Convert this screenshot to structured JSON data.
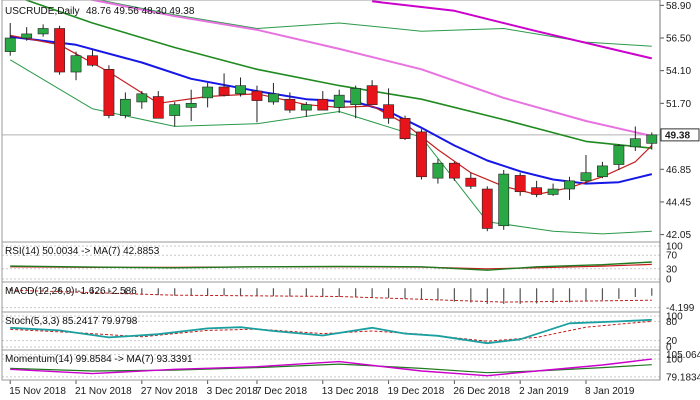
{
  "header": {
    "symbol": "USCRUDE,Daily",
    "ohlc": "48.76 49.56 48.30 49.38"
  },
  "colors": {
    "bull": "#2aa845",
    "bear": "#e8141c",
    "ma_blue": "#1616e6",
    "ma_green": "#1f8a1f",
    "ma_pink": "#e872e0",
    "ma_magenta": "#cc00cc",
    "ma_red": "#c41f1f",
    "bollinger": "#2a9a4a",
    "current_price_bg": "#ffffff"
  },
  "chart_data": {
    "type": "candlestick",
    "price_axis": {
      "range": [
        41.8,
        59.0
      ],
      "ticks": [
        "58.90",
        "56.50",
        "54.10",
        "51.70",
        "49.30",
        "46.85",
        "44.45",
        "42.05"
      ],
      "current": "49.38"
    },
    "dates": [
      "15 Nov 2018",
      "21 Nov 2018",
      "27 Nov 2018",
      "3 Dec 2018",
      "7 Dec 2018",
      "13 Dec 2018",
      "19 Dec 2018",
      "26 Dec 2018",
      "2 Jan 2019",
      "8 Jan 2019"
    ],
    "candles": [
      {
        "o": 55.5,
        "h": 57.6,
        "l": 55.2,
        "c": 56.5
      },
      {
        "o": 56.5,
        "h": 57.3,
        "l": 56.3,
        "c": 56.8
      },
      {
        "o": 56.8,
        "h": 57.5,
        "l": 56.6,
        "c": 57.2
      },
      {
        "o": 57.2,
        "h": 57.4,
        "l": 53.8,
        "c": 54.0
      },
      {
        "o": 54.0,
        "h": 55.5,
        "l": 53.4,
        "c": 55.2
      },
      {
        "o": 55.2,
        "h": 55.6,
        "l": 54.4,
        "c": 54.5
      },
      {
        "o": 54.2,
        "h": 54.5,
        "l": 50.6,
        "c": 50.8
      },
      {
        "o": 50.8,
        "h": 52.5,
        "l": 50.6,
        "c": 52.0
      },
      {
        "o": 51.8,
        "h": 52.6,
        "l": 51.3,
        "c": 52.4
      },
      {
        "o": 52.2,
        "h": 52.6,
        "l": 50.6,
        "c": 50.6
      },
      {
        "o": 50.8,
        "h": 51.8,
        "l": 50.0,
        "c": 51.6
      },
      {
        "o": 51.4,
        "h": 52.7,
        "l": 50.4,
        "c": 51.7
      },
      {
        "o": 52.1,
        "h": 53.2,
        "l": 51.4,
        "c": 52.9
      },
      {
        "o": 52.9,
        "h": 53.9,
        "l": 52.2,
        "c": 52.3
      },
      {
        "o": 52.4,
        "h": 53.6,
        "l": 52.2,
        "c": 53.0
      },
      {
        "o": 52.6,
        "h": 53.0,
        "l": 50.3,
        "c": 51.9
      },
      {
        "o": 51.8,
        "h": 53.2,
        "l": 51.6,
        "c": 52.4
      },
      {
        "o": 52.0,
        "h": 52.5,
        "l": 51.0,
        "c": 51.2
      },
      {
        "o": 51.2,
        "h": 51.8,
        "l": 50.7,
        "c": 51.6
      },
      {
        "o": 52.0,
        "h": 52.6,
        "l": 51.2,
        "c": 51.2
      },
      {
        "o": 51.4,
        "h": 52.7,
        "l": 51.0,
        "c": 52.3
      },
      {
        "o": 51.6,
        "h": 53.0,
        "l": 50.6,
        "c": 52.8
      },
      {
        "o": 53.0,
        "h": 53.4,
        "l": 51.6,
        "c": 51.6
      },
      {
        "o": 51.6,
        "h": 52.8,
        "l": 50.2,
        "c": 50.6
      },
      {
        "o": 50.6,
        "h": 50.8,
        "l": 49.0,
        "c": 49.1
      },
      {
        "o": 49.6,
        "h": 49.8,
        "l": 46.1,
        "c": 46.3
      },
      {
        "o": 46.2,
        "h": 47.6,
        "l": 45.8,
        "c": 47.3
      },
      {
        "o": 47.3,
        "h": 47.4,
        "l": 46.0,
        "c": 46.2
      },
      {
        "o": 46.2,
        "h": 46.6,
        "l": 45.4,
        "c": 45.6
      },
      {
        "o": 45.4,
        "h": 45.6,
        "l": 42.3,
        "c": 42.5
      },
      {
        "o": 42.7,
        "h": 46.8,
        "l": 42.4,
        "c": 46.5
      },
      {
        "o": 46.4,
        "h": 46.6,
        "l": 44.9,
        "c": 45.2
      },
      {
        "o": 45.5,
        "h": 46.0,
        "l": 44.8,
        "c": 45.0
      },
      {
        "o": 45.0,
        "h": 45.8,
        "l": 44.9,
        "c": 45.4
      },
      {
        "o": 45.4,
        "h": 46.3,
        "l": 44.6,
        "c": 46.0
      },
      {
        "o": 46.0,
        "h": 47.9,
        "l": 45.8,
        "c": 46.6
      },
      {
        "o": 46.3,
        "h": 47.4,
        "l": 46.2,
        "c": 47.1
      },
      {
        "o": 47.2,
        "h": 48.7,
        "l": 46.8,
        "c": 48.6
      },
      {
        "o": 48.5,
        "h": 50.0,
        "l": 48.2,
        "c": 49.1
      },
      {
        "o": 48.76,
        "h": 49.56,
        "l": 48.3,
        "c": 49.38
      }
    ],
    "overlays": {
      "bb_upper": [
        [
          0,
          60.2
        ],
        [
          5,
          59.4
        ],
        [
          10,
          58.2
        ],
        [
          15,
          57.2
        ],
        [
          20,
          57.6
        ],
        [
          25,
          57.0
        ],
        [
          30,
          57.2
        ],
        [
          35,
          56.2
        ],
        [
          39,
          55.9
        ]
      ],
      "bb_lower": [
        [
          0,
          54.9
        ],
        [
          5,
          51.3
        ],
        [
          10,
          50.0
        ],
        [
          15,
          50.2
        ],
        [
          20,
          51.1
        ],
        [
          25,
          49.2
        ],
        [
          29,
          43.0
        ],
        [
          33,
          42.3
        ],
        [
          36,
          42.1
        ],
        [
          39,
          42.3
        ]
      ],
      "ma_blue": [
        [
          0,
          56.6
        ],
        [
          4,
          56.0
        ],
        [
          8,
          54.7
        ],
        [
          11,
          53.5
        ],
        [
          15,
          52.6
        ],
        [
          18,
          52.0
        ],
        [
          21,
          51.8
        ],
        [
          23,
          51.1
        ],
        [
          25,
          49.9
        ],
        [
          27,
          48.6
        ],
        [
          29,
          47.5
        ],
        [
          31,
          46.7
        ],
        [
          33,
          46.1
        ],
        [
          35,
          45.8
        ],
        [
          37,
          45.9
        ],
        [
          39,
          46.5
        ]
      ],
      "ma_green": [
        [
          0,
          59.7
        ],
        [
          5,
          57.6
        ],
        [
          10,
          55.8
        ],
        [
          15,
          54.2
        ],
        [
          20,
          53.0
        ],
        [
          25,
          52.0
        ],
        [
          30,
          50.5
        ],
        [
          35,
          48.9
        ],
        [
          39,
          48.4
        ]
      ],
      "ma_pink": [
        [
          0,
          60.5
        ],
        [
          5,
          59.3
        ],
        [
          10,
          58.1
        ],
        [
          15,
          57.1
        ],
        [
          20,
          55.7
        ],
        [
          25,
          54.2
        ],
        [
          30,
          52.1
        ],
        [
          35,
          50.4
        ],
        [
          39,
          49.3
        ]
      ],
      "ma_magenta": [
        [
          22,
          59.2
        ],
        [
          27,
          58.5
        ],
        [
          32,
          57.0
        ],
        [
          39,
          55.0
        ]
      ],
      "ma_red": [
        [
          0,
          56.7
        ],
        [
          3,
          56.0
        ],
        [
          6,
          54.0
        ],
        [
          9,
          51.7
        ],
        [
          12,
          52.2
        ],
        [
          15,
          52.4
        ],
        [
          18,
          51.6
        ],
        [
          20,
          51.4
        ],
        [
          22,
          51.5
        ],
        [
          24,
          50.2
        ],
        [
          26,
          48.3
        ],
        [
          28,
          46.6
        ],
        [
          30,
          45.6
        ],
        [
          32,
          45.0
        ],
        [
          34,
          45.5
        ],
        [
          36,
          46.3
        ],
        [
          38,
          47.4
        ],
        [
          39,
          48.6
        ]
      ]
    },
    "indicators": [
      {
        "label": "RSI(14) 50.0034 -> MA(7) 42.8853",
        "range": [
          0,
          100
        ],
        "ticks": [
          "100",
          "70",
          "30",
          "0"
        ],
        "rsi": [
          [
            0,
            38
          ],
          [
            5,
            35
          ],
          [
            10,
            33
          ],
          [
            15,
            36
          ],
          [
            20,
            37
          ],
          [
            25,
            36
          ],
          [
            29,
            26
          ],
          [
            32,
            36
          ],
          [
            36,
            42
          ],
          [
            39,
            50
          ]
        ],
        "ma": [
          [
            0,
            36
          ],
          [
            5,
            34
          ],
          [
            10,
            34
          ],
          [
            15,
            36
          ],
          [
            20,
            36
          ],
          [
            25,
            35
          ],
          [
            29,
            30
          ],
          [
            32,
            33
          ],
          [
            36,
            38
          ],
          [
            39,
            43
          ]
        ]
      },
      {
        "label": "MACD(12,26,9) -1.626 -2.586",
        "range": [
          -4.5,
          0.7
        ],
        "ticks": [
          "-4.199"
        ],
        "macd": [
          -0.6,
          -0.6,
          -0.7,
          -0.8,
          -0.9,
          -1.0,
          -1.2,
          -1.3,
          -1.4,
          -1.5,
          -1.6,
          -1.6,
          -1.6,
          -1.6,
          -1.6,
          -1.7,
          -1.7,
          -1.8,
          -1.8,
          -1.9,
          -1.9,
          -1.9,
          -2.0,
          -2.1,
          -2.3,
          -2.5,
          -2.7,
          -2.9,
          -3.1,
          -3.4,
          -3.4,
          -3.4,
          -3.3,
          -3.2,
          -3.1,
          -2.9,
          -2.6,
          -2.3,
          -1.9,
          -1.626
        ],
        "signal": [
          [
            0,
            -0.4
          ],
          [
            10,
            -1.5
          ],
          [
            20,
            -1.8
          ],
          [
            30,
            -3.0
          ],
          [
            39,
            -2.586
          ]
        ]
      },
      {
        "label": "Stoch(5,3,3) 85.2417 79.9798",
        "range": [
          0,
          100
        ],
        "ticks": [
          "100",
          "80",
          "20",
          "0"
        ],
        "k": [
          [
            0,
            60
          ],
          [
            3,
            52
          ],
          [
            6,
            30
          ],
          [
            9,
            40
          ],
          [
            12,
            58
          ],
          [
            14,
            62
          ],
          [
            16,
            50
          ],
          [
            19,
            36
          ],
          [
            22,
            60
          ],
          [
            24,
            42
          ],
          [
            26,
            35
          ],
          [
            29,
            12
          ],
          [
            31,
            24
          ],
          [
            34,
            74
          ],
          [
            37,
            80
          ],
          [
            39,
            85
          ]
        ],
        "d": [
          [
            0,
            55
          ],
          [
            4,
            45
          ],
          [
            8,
            32
          ],
          [
            12,
            52
          ],
          [
            15,
            56
          ],
          [
            19,
            42
          ],
          [
            22,
            50
          ],
          [
            25,
            40
          ],
          [
            29,
            18
          ],
          [
            32,
            30
          ],
          [
            35,
            62
          ],
          [
            38,
            76
          ],
          [
            39,
            80
          ]
        ]
      },
      {
        "label": "Momentum(14) 99.8584 -> MA(7) 93.3391",
        "range": [
          79.0,
          107.0
        ],
        "ticks": [
          "105.0643",
          "100",
          "79.1834"
        ],
        "mom": [
          [
            0,
            88
          ],
          [
            5,
            83
          ],
          [
            10,
            88
          ],
          [
            15,
            91
          ],
          [
            20,
            97
          ],
          [
            25,
            86
          ],
          [
            29,
            80.5
          ],
          [
            32,
            86
          ],
          [
            36,
            93
          ],
          [
            39,
            99.9
          ]
        ],
        "ma": [
          [
            0,
            89
          ],
          [
            5,
            86
          ],
          [
            10,
            87
          ],
          [
            15,
            90
          ],
          [
            20,
            94
          ],
          [
            25,
            89
          ],
          [
            29,
            84
          ],
          [
            32,
            86
          ],
          [
            36,
            90
          ],
          [
            39,
            93.3
          ]
        ]
      }
    ]
  }
}
